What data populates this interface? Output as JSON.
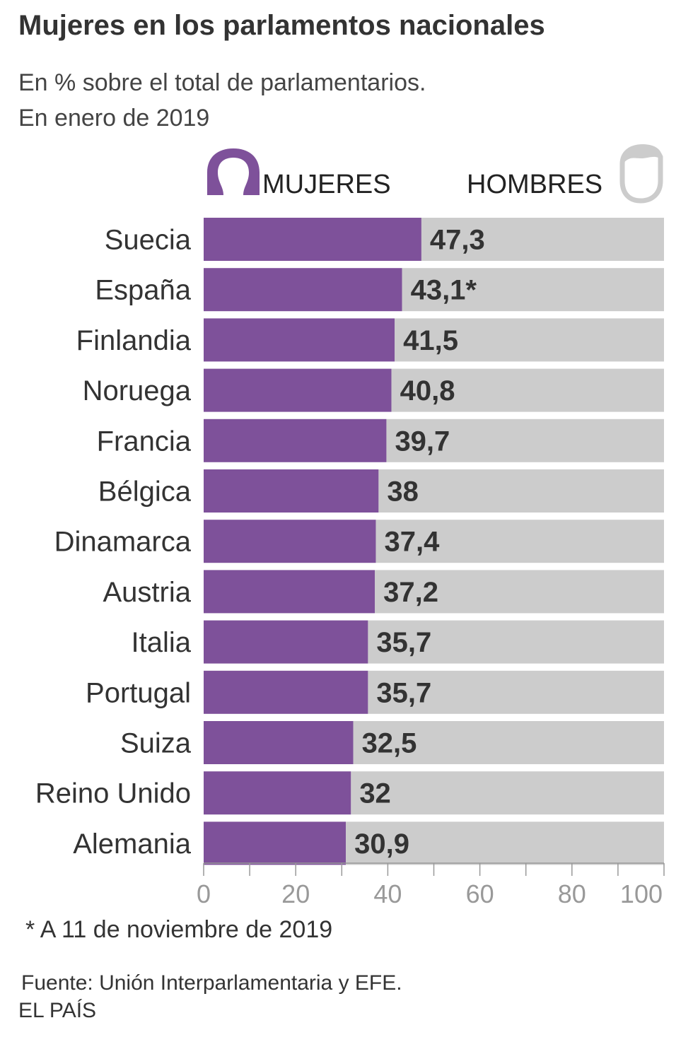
{
  "title": "Mujeres en los parlamentos nacionales",
  "subtitle_line1": "En % sobre el total de parlamentarios.",
  "subtitle_line2": "En enero de 2019",
  "legend": {
    "women_label": "MUJERES",
    "men_label": "HOMBRES",
    "women_icon": "woman-silhouette-icon",
    "men_icon": "man-silhouette-icon"
  },
  "colors": {
    "women": "#7e519a",
    "men": "#cccccc",
    "value_text": "#333333",
    "axis": "#999999"
  },
  "note": "* A 11 de noviembre de 2019",
  "source": "Fuente: Unión Interparlamentaria y EFE.",
  "brand": "EL PAÍS",
  "chart_data": {
    "type": "bar",
    "orientation": "horizontal",
    "stacked": true,
    "xlim": [
      0,
      100
    ],
    "x_ticks": [
      "0",
      "20",
      "40",
      "60",
      "80",
      "100"
    ],
    "categories": [
      "Suecia",
      "España",
      "Finlandia",
      "Noruega",
      "Francia",
      "Bélgica",
      "Dinamarca",
      "Austria",
      "Italia",
      "Portugal",
      "Suiza",
      "Reino Unido",
      "Alemania"
    ],
    "series": [
      {
        "name": "MUJERES",
        "values": [
          47.3,
          43.1,
          41.5,
          40.8,
          39.7,
          38,
          37.4,
          37.2,
          35.7,
          35.7,
          32.5,
          32,
          30.9
        ]
      },
      {
        "name": "HOMBRES",
        "values": [
          52.7,
          56.9,
          58.5,
          59.2,
          60.3,
          62,
          62.6,
          62.8,
          64.3,
          64.3,
          67.5,
          68,
          69.1
        ]
      }
    ],
    "data_labels": [
      "47,3",
      "43,1*",
      "41,5",
      "40,8",
      "39,7",
      "38",
      "37,4",
      "37,2",
      "35,7",
      "35,7",
      "32,5",
      "32",
      "30,9"
    ]
  }
}
